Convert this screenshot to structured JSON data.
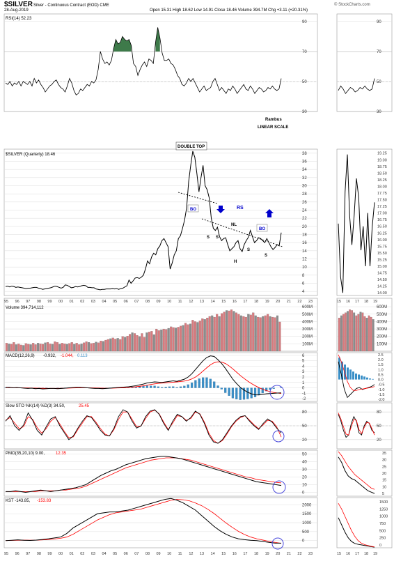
{
  "header": {
    "title": "$SILVER",
    "subtitle": "Silver - Continuous Contract (EOD)  CME",
    "date": "28-Aug-2019",
    "quote": "Open 15.31   High 18.62   Low 14.91   Close 18.46   Volume 394.7M   Chg +3.11 (+20.31%)",
    "watermark": "© StockCharts.com"
  },
  "colors": {
    "price": "#000000",
    "signal": "#ff0000",
    "histogram": "#3a8fc7",
    "volume_up": "#d97a7e",
    "volume_down": "#8c8c8c",
    "rsi_fill": "#3e7a4a",
    "annotation": "#0000cc",
    "circle": "#4a4adc",
    "grid": "#dddddd"
  },
  "x_axis": {
    "main_labels": [
      "95",
      "96",
      "97",
      "98",
      "99",
      "00",
      "01",
      "02",
      "03",
      "04",
      "05",
      "06",
      "07",
      "08",
      "09",
      "10",
      "11",
      "12",
      "13",
      "14",
      "15",
      "16",
      "17",
      "18",
      "19",
      "20",
      "21",
      "22",
      "23"
    ],
    "side_labels": [
      "15",
      "16",
      "17",
      "18",
      "19"
    ]
  },
  "panels": {
    "rsi": {
      "label": "RSI(14) 52.23",
      "ticks": [
        "90",
        "70",
        "50",
        "30"
      ],
      "levels": [
        70,
        50,
        30
      ],
      "notes": [
        "Rambus",
        "LINEAR SCALE"
      ]
    },
    "price": {
      "label": "$SILVER (Quarterly) 18.46",
      "ticks": [
        "38",
        "36",
        "34",
        "32",
        "30",
        "28",
        "26",
        "24",
        "22",
        "20",
        "18",
        "16",
        "14",
        "12",
        "10",
        "8",
        "6",
        "4"
      ],
      "side_ticks": [
        "19.25",
        "19.00",
        "18.75",
        "18.50",
        "18.25",
        "18.00",
        "17.75",
        "17.50",
        "17.25",
        "17.00",
        "16.75",
        "16.50",
        "16.25",
        "16.00",
        "15.75",
        "15.50",
        "15.25",
        "15.00",
        "14.75",
        "14.50",
        "14.25",
        "14.00"
      ],
      "annotations": {
        "double_top": "DOUBLE TOP",
        "bo_left": "BO",
        "bo_right": "BO",
        "rs": "RS",
        "nl": "NL",
        "s1": "S",
        "s2": "S",
        "h": "H",
        "s3": "S",
        "s4": "S"
      }
    },
    "volume": {
      "label": "Volume 394,714,112",
      "ticks": [
        "600M",
        "500M",
        "400M",
        "300M",
        "200M",
        "100M"
      ]
    },
    "macd": {
      "label": "MACD(12,26,9)",
      "values": [
        "-0.932,",
        "-1.044,",
        "0.113"
      ],
      "ticks": [
        "6",
        "5",
        "4",
        "3",
        "2",
        "1",
        "0",
        "-1",
        "-2"
      ],
      "side_ticks": [
        "2.5",
        "2.0",
        "1.5",
        "1.0",
        "0.5",
        "0.0",
        "-0.5",
        "-1.0",
        "-1.5",
        "-2.0"
      ]
    },
    "sto": {
      "label": "Slow STO %K(14) %D(3) 34.50,",
      "value2": "25.45",
      "ticks": [
        "80",
        "50",
        "20"
      ]
    },
    "pmo": {
      "label": "PMO(35,20,10) 9.00,",
      "value2": "12.35",
      "ticks": [
        "50",
        "40",
        "30",
        "20",
        "10",
        "0"
      ],
      "side_ticks": [
        "35",
        "30",
        "25",
        "20",
        "15",
        "10",
        "5"
      ]
    },
    "kst": {
      "label": "KST -143.85,",
      "value2": "-153.83",
      "ticks": [
        "2000",
        "1500",
        "1000",
        "500",
        "0"
      ],
      "side_ticks": [
        "1500",
        "1250",
        "1000",
        "750",
        "500",
        "250",
        "0"
      ]
    }
  },
  "chart_data": {
    "type": "line",
    "title": "$SILVER",
    "subtitle": "Silver - Continuous Contract (EOD) CME",
    "x_start_year": 1995,
    "x_step_years": 0.25,
    "series": [
      {
        "name": "$SILVER (Quarterly)",
        "panel": "price",
        "values": [
          5.2,
          5.3,
          5.1,
          5.3,
          5.2,
          5.0,
          5.1,
          5.0,
          4.9,
          4.8,
          4.7,
          4.8,
          4.8,
          4.9,
          5.0,
          5.0,
          4.8,
          4.7,
          4.5,
          4.6,
          4.7,
          4.8,
          4.9,
          5.1,
          5.3,
          5.2,
          5.0,
          4.8,
          5.0,
          5.6,
          5.5,
          5.2,
          4.9,
          5.0,
          5.2,
          5.1,
          5.2,
          5.4,
          5.5,
          5.4,
          5.0,
          5.0,
          4.9,
          4.9,
          4.6,
          4.5,
          4.4,
          4.5,
          4.5,
          4.6,
          4.6,
          4.6,
          4.7,
          4.6,
          4.7,
          4.5,
          4.7,
          4.8,
          5.1,
          5.4,
          6.8,
          6.0,
          6.6,
          7.3,
          7.4,
          7.2,
          7.5,
          8.0,
          9.5,
          11.5,
          10.8,
          12.5,
          13.4,
          13.0,
          14.5,
          15.2,
          16.5,
          17.0,
          16.0,
          15.0,
          9.5,
          11.0,
          13.0,
          14.0,
          17.0,
          17.7,
          19.5,
          21.5,
          24.5,
          31.0,
          35.0,
          38.5,
          37.0,
          33.0,
          28.5,
          32.0,
          35.0,
          30.0,
          29.0,
          27.0,
          22.0,
          19.5,
          19.0,
          19.8,
          17.5,
          16.5,
          17.0,
          17.2,
          15.5,
          14.0,
          14.5,
          15.0,
          16.0,
          16.5,
          14.5,
          13.8,
          15.5,
          16.5,
          17.3,
          19.0,
          17.5,
          16.0,
          16.5,
          17.2,
          17.0,
          16.5,
          16.0,
          17.0,
          16.0,
          15.0,
          14.3,
          14.8,
          15.5,
          15.2,
          18.46
        ]
      },
      {
        "name": "RSI(14)",
        "panel": "rsi",
        "values": [
          49,
          48,
          50,
          47,
          49,
          48,
          50,
          47,
          50,
          49,
          48,
          50,
          47,
          52,
          49,
          51,
          48,
          46,
          43,
          45,
          47,
          48,
          50,
          51,
          48,
          46,
          45,
          43,
          47,
          52,
          49,
          44,
          41,
          42,
          45,
          44,
          46,
          48,
          47,
          50,
          49,
          51,
          58,
          70,
          65,
          62,
          63,
          61,
          64,
          72,
          78,
          75,
          76,
          80,
          78,
          77,
          78,
          74,
          62,
          60,
          54,
          58,
          61,
          63,
          60,
          65,
          64,
          62,
          76,
          86,
          79,
          69,
          64,
          64,
          65,
          62,
          61,
          58,
          54,
          52,
          48,
          47,
          49,
          52,
          50,
          52,
          49,
          46,
          43,
          45,
          47,
          44,
          45,
          46,
          50,
          52,
          48,
          44,
          46,
          44,
          42,
          45,
          44,
          47,
          45,
          42,
          44,
          46,
          48,
          45,
          44,
          47,
          45,
          42,
          44,
          46,
          45,
          43,
          44,
          46,
          45,
          47,
          45,
          44,
          45,
          52
        ]
      },
      {
        "name": "Volume",
        "panel": "volume",
        "values": [
          110,
          100,
          95,
          120,
          90,
          100,
          85,
          80,
          105,
          95,
          90,
          110,
          90,
          110,
          100,
          95,
          115,
          120,
          100,
          95,
          130,
          120,
          95,
          110,
          100,
          95,
          105,
          120,
          95,
          110,
          90,
          100,
          115,
          130,
          120,
          105,
          110,
          125,
          115,
          140,
          135,
          150,
          160,
          170,
          180,
          165,
          175,
          160,
          200,
          190,
          205,
          230,
          250,
          240,
          215,
          200,
          240,
          190,
          250,
          260,
          270,
          225,
          300,
          280,
          290,
          300,
          295,
          310,
          330,
          320,
          315,
          325,
          340,
          350,
          380,
          360,
          370,
          420,
          400,
          390,
          410,
          440,
          430,
          450,
          470,
          480,
          460,
          500,
          470,
          510,
          530,
          550,
          545,
          560,
          540,
          520,
          500,
          480,
          470,
          460,
          500,
          490,
          520,
          480,
          460,
          455,
          470,
          480,
          500,
          470,
          460,
          455,
          480,
          395
        ]
      },
      {
        "name": "MACD",
        "panel": "macd",
        "values": [
          0.1,
          0.1,
          0.0,
          0.05,
          0.0,
          -0.05,
          -0.1,
          -0.05,
          -0.15,
          -0.1,
          -0.2,
          -0.15,
          -0.1,
          -0.1,
          -0.15,
          -0.1,
          -0.05,
          0.0,
          0.05,
          0.1,
          0.1,
          0.05,
          0.0,
          -0.05,
          -0.1,
          -0.1,
          -0.15,
          -0.1,
          -0.05,
          0.0,
          0.05,
          0.1,
          0.15,
          0.2,
          0.3,
          0.4,
          0.55,
          0.7,
          0.9,
          1.0,
          1.1,
          1.05,
          1.0,
          1.1,
          1.2,
          1.3,
          1.2,
          1.4,
          1.6,
          2.0,
          2.6,
          3.4,
          4.2,
          5.0,
          5.6,
          5.9,
          5.8,
          5.2,
          4.5,
          3.6,
          2.6,
          1.6,
          0.8,
          0.1,
          -0.4,
          -0.8,
          -1.1,
          -1.3,
          -1.3,
          -1.2,
          -1.1,
          -1.05,
          -1.0,
          -0.95,
          -0.93
        ]
      },
      {
        "name": "MACD Signal",
        "panel": "macd",
        "values": [
          0.05,
          0.05,
          0.03,
          0.02,
          0.01,
          0.0,
          -0.02,
          -0.03,
          -0.05,
          -0.06,
          -0.08,
          -0.1,
          -0.1,
          -0.1,
          -0.1,
          -0.08,
          -0.06,
          -0.04,
          -0.02,
          0.0,
          0.02,
          0.03,
          0.02,
          0.0,
          -0.02,
          -0.04,
          -0.06,
          -0.07,
          -0.06,
          -0.04,
          -0.02,
          0.0,
          0.04,
          0.08,
          0.13,
          0.2,
          0.28,
          0.38,
          0.5,
          0.62,
          0.74,
          0.82,
          0.88,
          0.93,
          0.98,
          1.05,
          1.1,
          1.17,
          1.25,
          1.4,
          1.65,
          2.0,
          2.5,
          3.1,
          3.7,
          4.25,
          4.65,
          4.8,
          4.75,
          4.5,
          4.05,
          3.5,
          2.9,
          2.3,
          1.75,
          1.25,
          0.8,
          0.4,
          0.05,
          -0.25,
          -0.5,
          -0.7,
          -0.85,
          -0.95,
          -1.04
        ]
      },
      {
        "name": "Slow STO %K",
        "panel": "sto",
        "values": [
          60,
          72,
          50,
          40,
          52,
          78,
          62,
          40,
          30,
          48,
          65,
          70,
          50,
          35,
          20,
          28,
          45,
          60,
          72,
          68,
          55,
          40,
          30,
          28,
          45,
          70,
          85,
          80,
          60,
          45,
          50,
          70,
          82,
          85,
          75,
          55,
          40,
          60,
          75,
          70,
          60,
          68,
          82,
          75,
          55,
          30,
          15,
          12,
          20,
          35,
          50,
          62,
          70,
          72,
          60,
          50,
          42,
          55,
          65,
          58,
          45,
          34.5
        ]
      },
      {
        "name": "Slow STO %D",
        "panel": "sto",
        "values": [
          62,
          68,
          56,
          44,
          48,
          70,
          64,
          46,
          34,
          44,
          60,
          68,
          54,
          38,
          24,
          26,
          42,
          56,
          70,
          70,
          58,
          44,
          32,
          28,
          42,
          64,
          80,
          80,
          64,
          48,
          50,
          66,
          80,
          84,
          76,
          58,
          42,
          56,
          72,
          70,
          62,
          66,
          80,
          76,
          58,
          34,
          18,
          12,
          18,
          32,
          48,
          60,
          68,
          72,
          62,
          52,
          44,
          52,
          62,
          60,
          48,
          25.45
        ]
      },
      {
        "name": "PMO",
        "panel": "pmo",
        "values": [
          1,
          1,
          2,
          1,
          0,
          1,
          2,
          3,
          2,
          1,
          2,
          3,
          4,
          5,
          6,
          8,
          10,
          14,
          18,
          22,
          25,
          28,
          30,
          33,
          36,
          38,
          40,
          42,
          44,
          45,
          46,
          47,
          47,
          46,
          45,
          44,
          42,
          40,
          38,
          36,
          34,
          32,
          30,
          28,
          26,
          24,
          22,
          20,
          18,
          16,
          14,
          13,
          12,
          11,
          10,
          9
        ]
      },
      {
        "name": "PMO Signal",
        "panel": "pmo",
        "values": [
          1,
          1,
          1,
          1,
          1,
          1,
          1,
          2,
          2,
          2,
          2,
          3,
          3,
          4,
          5,
          6,
          8,
          11,
          14,
          17,
          20,
          23,
          26,
          29,
          32,
          34,
          36,
          38,
          40,
          42,
          43,
          44,
          45,
          45,
          45,
          44,
          43,
          42,
          40,
          38,
          36,
          34,
          32,
          30,
          28,
          26,
          24,
          22,
          20,
          19,
          17,
          16,
          15,
          14,
          13,
          12.35
        ]
      },
      {
        "name": "KST",
        "panel": "kst",
        "values": [
          0,
          20,
          40,
          20,
          10,
          30,
          60,
          100,
          150,
          200,
          400,
          700,
          900,
          1100,
          1300,
          1500,
          1550,
          1600,
          1600,
          1650,
          1700,
          1800,
          1900,
          2000,
          2100,
          2200,
          2300,
          2350,
          2250,
          2100,
          1900,
          1700,
          1400,
          1100,
          800,
          550,
          350,
          200,
          100,
          50,
          20,
          0,
          -50,
          -100,
          -140,
          -144
        ]
      },
      {
        "name": "KST Signal",
        "panel": "kst",
        "values": [
          0,
          10,
          20,
          25,
          20,
          25,
          40,
          60,
          90,
          130,
          200,
          350,
          550,
          750,
          950,
          1150,
          1300,
          1450,
          1550,
          1600,
          1650,
          1700,
          1750,
          1850,
          1950,
          2050,
          2150,
          2250,
          2300,
          2280,
          2220,
          2100,
          1950,
          1750,
          1520,
          1250,
          980,
          740,
          520,
          340,
          200,
          100,
          30,
          -40,
          -100,
          -154
        ]
      }
    ]
  }
}
